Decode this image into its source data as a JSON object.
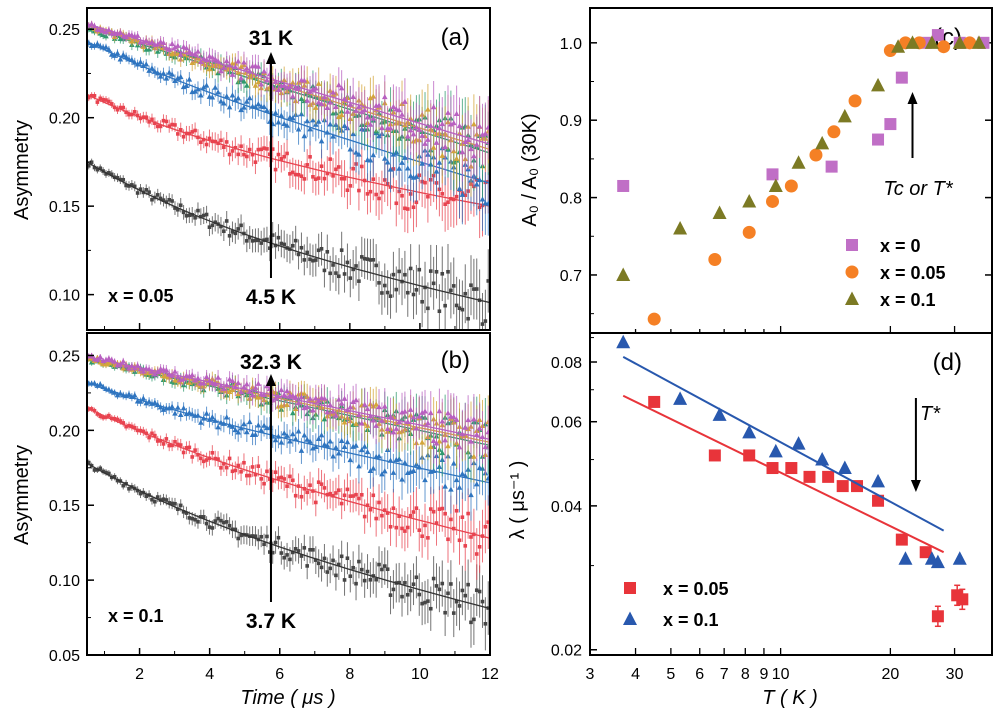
{
  "chart_data": [
    {
      "type": "scatter",
      "panel": "(a)",
      "ylabel": "Asymmetry",
      "xlim": [
        0.5,
        12
      ],
      "ylim": [
        0.08,
        0.262
      ],
      "yticks": [
        "0.10",
        "0.15",
        "0.20",
        "0.25"
      ],
      "xticks": [],
      "annotations": {
        "top": "31 K",
        "bottom": "4.5 K",
        "composition": "x = 0.05"
      },
      "series": [
        {
          "color": "#454545",
          "fit": [
            0.175,
            0.0955
          ],
          "tau": 5,
          "amp": 0.04
        },
        {
          "color": "#e8434f",
          "fit": [
            0.213,
            0.15
          ],
          "tau": 5,
          "amp": 0.03
        },
        {
          "color": "#2f75c0",
          "fit": [
            0.243,
            0.163
          ],
          "tau": 4,
          "amp": 0.015
        },
        {
          "color": "#2f9a6e",
          "fit": [
            0.251,
            0.18
          ],
          "tau": 12,
          "amp": 0.0
        },
        {
          "color": "#d4a53a",
          "fit": [
            0.252,
            0.182
          ],
          "tau": 12,
          "amp": 0.0
        },
        {
          "color": "#b85fc0",
          "fit": [
            0.253,
            0.185
          ],
          "tau": 12,
          "amp": 0.0
        }
      ]
    },
    {
      "type": "scatter",
      "panel": "(b)",
      "ylabel": "Asymmetry",
      "xlabel": "Time ( μs )",
      "xlim": [
        0.5,
        12
      ],
      "ylim": [
        0.05,
        0.265
      ],
      "xticks": [
        "2",
        "4",
        "6",
        "8",
        "10",
        "12"
      ],
      "yticks": [
        "0.05",
        "0.10",
        "0.15",
        "0.20",
        "0.25"
      ],
      "annotations": {
        "top": "32.3 K",
        "bottom": "3.7 K",
        "composition": "x = 0.1"
      },
      "series": [
        {
          "color": "#454545",
          "fit": [
            0.178,
            0.081
          ],
          "tau": 5,
          "amp": 0.04
        },
        {
          "color": "#e8434f",
          "fit": [
            0.215,
            0.128
          ],
          "tau": 5,
          "amp": 0.03
        },
        {
          "color": "#2f75c0",
          "fit": [
            0.232,
            0.165
          ],
          "tau": 4,
          "amp": 0.015
        },
        {
          "color": "#2f9a6e",
          "fit": [
            0.247,
            0.19
          ],
          "tau": 12,
          "amp": 0.0
        },
        {
          "color": "#d4a53a",
          "fit": [
            0.248,
            0.192
          ],
          "tau": 12,
          "amp": 0.0
        },
        {
          "color": "#b85fc0",
          "fit": [
            0.249,
            0.194
          ],
          "tau": 12,
          "amp": 0.0
        }
      ]
    },
    {
      "type": "scatter",
      "panel": "(c)",
      "ylabel": "A₀ / A₀ (30K)",
      "xscale": "log",
      "xlim": [
        3,
        38
      ],
      "ylim": [
        0.625,
        1.045
      ],
      "yticks": [
        "0.7",
        "0.8",
        "0.9",
        "1.0"
      ],
      "annotation": "Tc or T*",
      "series": [
        {
          "name": "x = 0",
          "marker": "square",
          "color": "#c06fc6",
          "x": [
            3.7,
            9.5,
            13.8,
            18.5,
            20.0,
            21.5,
            25.0,
            27.0,
            31.0,
            36.0
          ],
          "y": [
            0.815,
            0.83,
            0.84,
            0.875,
            0.895,
            0.955,
            1.0,
            1.01,
            1.0,
            1.0
          ]
        },
        {
          "name": "x = 0.05",
          "marker": "circle",
          "color": "#f58025",
          "x": [
            4.5,
            6.6,
            8.2,
            9.5,
            10.7,
            12.5,
            14.0,
            16.0,
            20.0,
            22.0,
            24.0,
            28.0,
            33.0
          ],
          "y": [
            0.643,
            0.72,
            0.755,
            0.795,
            0.815,
            0.855,
            0.885,
            0.925,
            0.99,
            1.0,
            1.0,
            0.995,
            1.0
          ]
        },
        {
          "name": "x = 0.1",
          "marker": "triangle",
          "color": "#7c7a24",
          "x": [
            3.7,
            5.3,
            6.8,
            8.2,
            9.7,
            11.2,
            13.0,
            15.0,
            18.5,
            21.0,
            23.0,
            26.0,
            31.0,
            35.0
          ],
          "y": [
            0.7,
            0.76,
            0.78,
            0.795,
            0.815,
            0.845,
            0.87,
            0.905,
            0.945,
            0.995,
            1.0,
            1.0,
            1.0,
            1.0
          ]
        }
      ]
    },
    {
      "type": "scatter",
      "panel": "(d)",
      "ylabel": "λ ( μs⁻¹ )",
      "xlabel": "T ( K )",
      "xscale": "log",
      "yscale": "log",
      "xlim": [
        3,
        38
      ],
      "ylim": [
        0.0195,
        0.092
      ],
      "xticks": [
        "3",
        "4",
        "5",
        "6",
        "7",
        "8",
        "9",
        "10",
        "20",
        "30"
      ],
      "yticks": [
        "0.02",
        "0.04",
        "0.06",
        "0.08"
      ],
      "annotation": "T*",
      "series": [
        {
          "name": "x = 0.05",
          "marker": "square",
          "color": "#e8343a",
          "x": [
            4.5,
            6.6,
            8.2,
            9.5,
            10.7,
            12.0,
            13.5,
            14.8,
            16.2,
            18.5,
            21.5,
            25.0,
            27.0,
            30.5,
            31.5
          ],
          "y": [
            0.066,
            0.051,
            0.051,
            0.048,
            0.048,
            0.046,
            0.046,
            0.044,
            0.044,
            0.041,
            0.034,
            0.032,
            0.0235,
            0.026,
            0.0255
          ],
          "fit_x": [
            3.7,
            28
          ],
          "fit_y": [
            0.068,
            0.032
          ]
        },
        {
          "name": "x = 0.1",
          "marker": "triangle",
          "color": "#2858ae",
          "x": [
            3.7,
            5.3,
            6.8,
            8.2,
            9.7,
            11.2,
            13.0,
            15.0,
            18.5,
            22.0,
            26.0,
            27.0,
            31.0
          ],
          "y": [
            0.088,
            0.067,
            0.062,
            0.057,
            0.052,
            0.054,
            0.05,
            0.048,
            0.045,
            0.031,
            0.031,
            0.0305,
            0.031
          ],
          "fit_x": [
            3.7,
            28
          ],
          "fit_y": [
            0.082,
            0.0355
          ]
        }
      ]
    }
  ]
}
